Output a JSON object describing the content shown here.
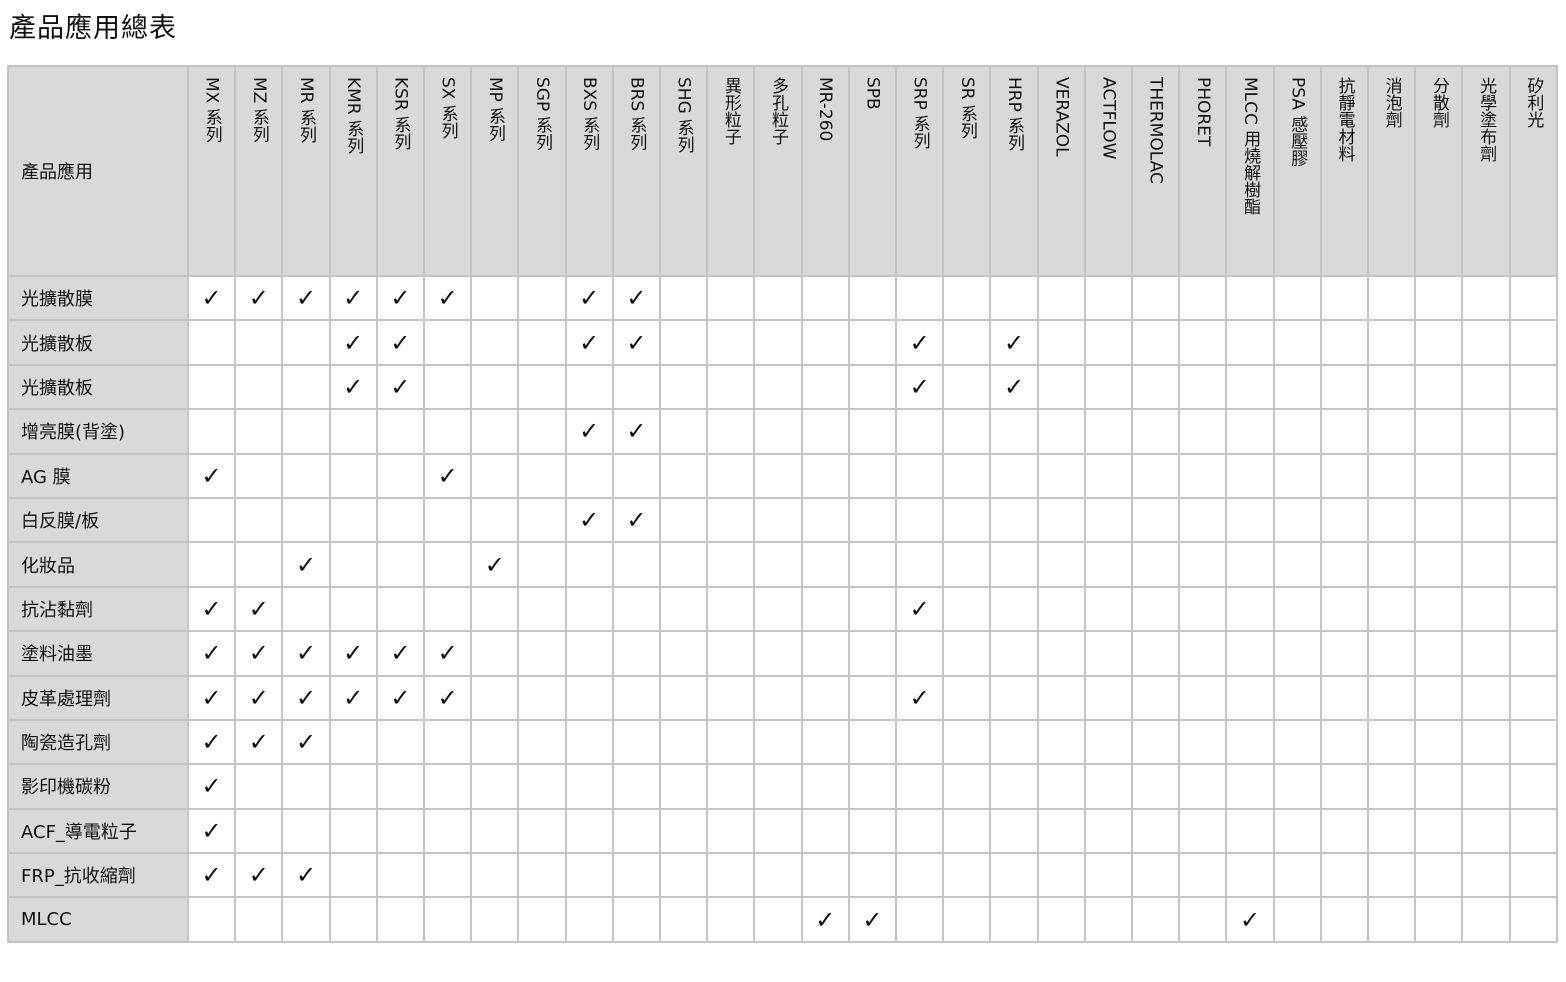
{
  "title": "產品應用總表",
  "table": {
    "corner_label": "產品應用",
    "check_symbol": "✓",
    "columns": [
      "MX 系列",
      "MZ 系列",
      "MR 系列",
      "KMR 系列",
      "KSR 系列",
      "SX 系列",
      "MP 系列",
      "SGP 系列",
      "BXS 系列",
      "BRS 系列",
      "SHG 系列",
      "異形粒子",
      "多孔粒子",
      "MR-260",
      "SPB",
      "SRP 系列",
      "SR 系列",
      "HRP 系列",
      "VERAZOL",
      "ACTFLOW",
      "THERMOLAC",
      "PHORET",
      "MLCC 用燒解樹酯",
      "PSA 感壓膠",
      "抗靜電材料",
      "消泡劑",
      "分散劑",
      "光學塗布劑",
      "矽利光"
    ],
    "rows": [
      {
        "label": "光擴散膜",
        "checked": [
          "MX 系列",
          "MZ 系列",
          "MR 系列",
          "KMR 系列",
          "KSR 系列",
          "SX 系列",
          "BXS 系列",
          "BRS 系列"
        ]
      },
      {
        "label": "光擴散板",
        "checked": [
          "KMR 系列",
          "KSR 系列",
          "BXS 系列",
          "BRS 系列",
          "SRP 系列",
          "HRP 系列"
        ]
      },
      {
        "label": "光擴散板",
        "checked": [
          "KMR 系列",
          "KSR 系列",
          "SRP 系列",
          "HRP 系列"
        ]
      },
      {
        "label": "增亮膜(背塗)",
        "checked": [
          "BXS 系列",
          "BRS 系列"
        ]
      },
      {
        "label": "AG 膜",
        "checked": [
          "MX 系列",
          "SX 系列"
        ]
      },
      {
        "label": "白反膜/板",
        "checked": [
          "BXS 系列",
          "BRS 系列"
        ]
      },
      {
        "label": "化妝品",
        "checked": [
          "MR 系列",
          "MP 系列"
        ]
      },
      {
        "label": "抗沾黏劑",
        "checked": [
          "MX 系列",
          "MZ 系列",
          "SRP 系列"
        ]
      },
      {
        "label": "塗料油墨",
        "checked": [
          "MX 系列",
          "MZ 系列",
          "MR 系列",
          "KMR 系列",
          "KSR 系列",
          "SX 系列"
        ]
      },
      {
        "label": "皮革處理劑",
        "checked": [
          "MX 系列",
          "MZ 系列",
          "MR 系列",
          "KMR 系列",
          "KSR 系列",
          "SX 系列",
          "SRP 系列"
        ]
      },
      {
        "label": "陶瓷造孔劑",
        "checked": [
          "MX 系列",
          "MZ 系列",
          "MR 系列"
        ]
      },
      {
        "label": "影印機碳粉",
        "checked": [
          "MX 系列"
        ]
      },
      {
        "label": "ACF_導電粒子",
        "checked": [
          "MX 系列"
        ]
      },
      {
        "label": "FRP_抗收縮劑",
        "checked": [
          "MX 系列",
          "MZ 系列",
          "MR 系列"
        ]
      },
      {
        "label": "MLCC",
        "checked": [
          "MR-260",
          "SPB",
          "MLCC 用燒解樹酯"
        ]
      }
    ]
  },
  "colors": {
    "header_bg": "#d9d9d9",
    "border": "#c4c4c4"
  }
}
